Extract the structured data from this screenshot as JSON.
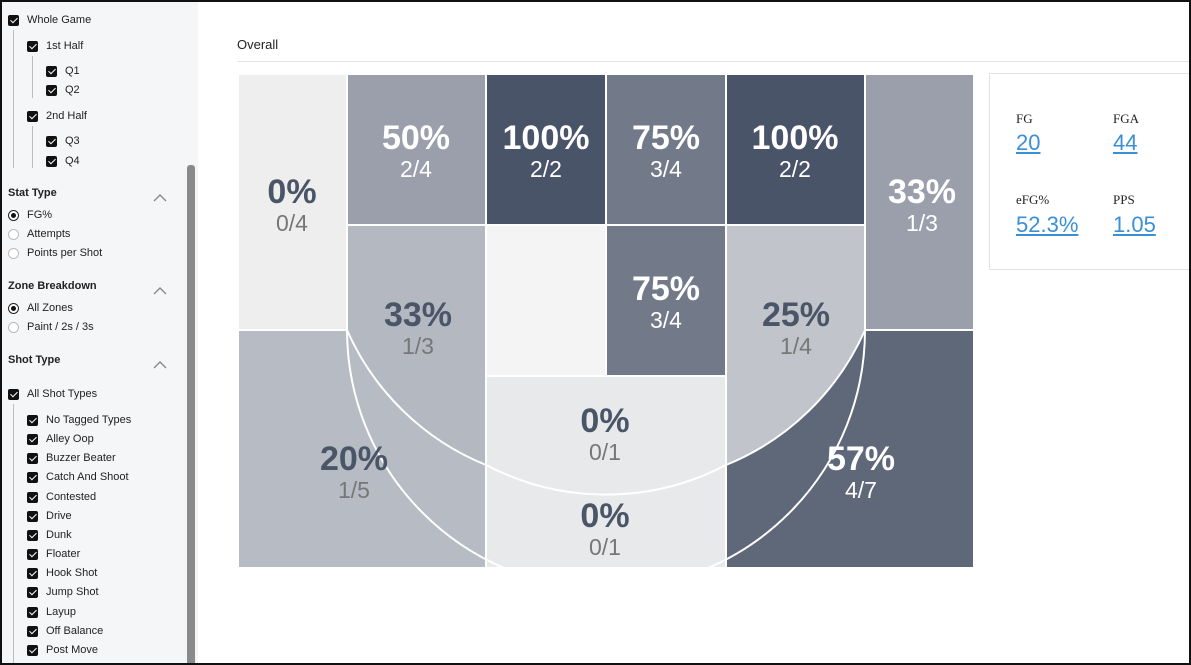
{
  "sidebar": {
    "period": {
      "whole_game": "Whole Game",
      "first_half": "1st Half",
      "q1": "Q1",
      "q2": "Q2",
      "second_half": "2nd Half",
      "q3": "Q3",
      "q4": "Q4"
    },
    "stat_type": {
      "title": "Stat Type",
      "options": [
        "FG%",
        "Attempts",
        "Points per Shot"
      ],
      "selected": "FG%"
    },
    "zone_breakdown": {
      "title": "Zone Breakdown",
      "options": [
        "All Zones",
        "Paint / 2s / 3s"
      ],
      "selected": "All Zones"
    },
    "shot_type": {
      "title": "Shot Type",
      "all": "All Shot Types",
      "items": [
        "No Tagged Types",
        "Alley Oop",
        "Buzzer Beater",
        "Catch And Shoot",
        "Contested",
        "Drive",
        "Dunk",
        "Floater",
        "Hook Shot",
        "Jump Shot",
        "Layup",
        "Off Balance",
        "Post Move"
      ]
    }
  },
  "main": {
    "title": "Overall"
  },
  "zones": {
    "left_corner_three": {
      "pct": "0%",
      "frac": "0/4",
      "color": "#eeeeef"
    },
    "left_wing_three": {
      "pct": "50%",
      "frac": "2/4",
      "color": "#9a9fab"
    },
    "left_center_deep": {
      "pct": "100%",
      "frac": "2/2",
      "color": "#495468"
    },
    "center_deep": {
      "pct": "75%",
      "frac": "3/4",
      "color": "#727a89"
    },
    "right_center_deep": {
      "pct": "100%",
      "frac": "2/2",
      "color": "#495468"
    },
    "right_corner_three": {
      "pct": "33%",
      "frac": "1/3",
      "color": "#9a9fab"
    },
    "left_elbow_mid": {
      "pct": "33%",
      "frac": "1/3",
      "color": "#b4b8c0"
    },
    "center_left_mid": {
      "pct": "",
      "frac": "",
      "color": "#f4f4f5"
    },
    "center_right_mid": {
      "pct": "75%",
      "frac": "3/4",
      "color": "#727a89"
    },
    "right_elbow_mid": {
      "pct": "25%",
      "frac": "1/4",
      "color": "#c1c4ca"
    },
    "left_baseline": {
      "pct": "20%",
      "frac": "1/5",
      "color": "#b7bbc3"
    },
    "paint_upper": {
      "pct": "0%",
      "frac": "0/1",
      "color": "#e8e9eb"
    },
    "paint_lower": {
      "pct": "0%",
      "frac": "0/1",
      "color": "#e8e9eb"
    },
    "right_baseline": {
      "pct": "57%",
      "frac": "4/7",
      "color": "#5f6878"
    }
  },
  "stats": {
    "fg": {
      "label": "FG",
      "value": "20"
    },
    "fga": {
      "label": "FGA",
      "value": "44"
    },
    "efg": {
      "label": "eFG%",
      "value": "52.3%"
    },
    "pps": {
      "label": "PPS",
      "value": "1.05"
    }
  }
}
